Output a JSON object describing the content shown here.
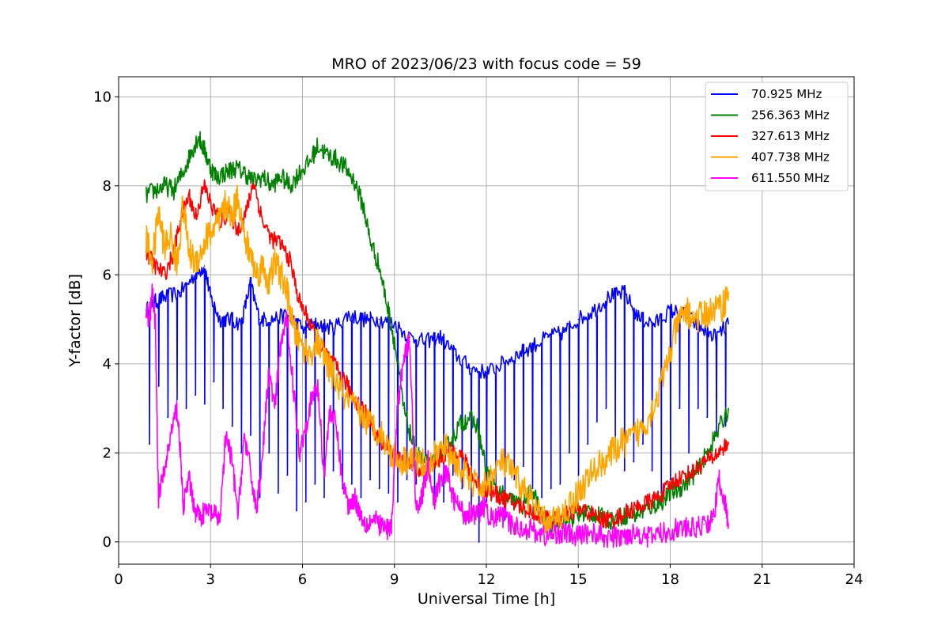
{
  "chart_data": {
    "type": "line",
    "title": "MRO of 2023/06/23 with focus code = 59",
    "xlabel": "Universal Time [h]",
    "ylabel": "Y-factor [dB]",
    "xlim": [
      0,
      24
    ],
    "ylim": [
      -0.5,
      10.45
    ],
    "xticks": [
      0,
      3,
      6,
      9,
      12,
      15,
      18,
      21,
      24
    ],
    "yticks": [
      0,
      2,
      4,
      6,
      8,
      10
    ],
    "grid": true,
    "legend_position": "top-right",
    "series": [
      {
        "name": " 70.925 MHz",
        "color": "#0000ff",
        "x": [
          0.9,
          1.2,
          1.5,
          2.0,
          2.5,
          2.8,
          3.0,
          3.3,
          3.6,
          4.0,
          4.3,
          4.6,
          5.0,
          5.5,
          6.0,
          6.5,
          7.0,
          7.5,
          8.0,
          8.5,
          9.0,
          9.5,
          10.0,
          10.5,
          11.0,
          11.5,
          12.0,
          12.5,
          13.0,
          13.5,
          14.0,
          14.5,
          15.0,
          15.5,
          16.0,
          16.5,
          17.0,
          17.5,
          18.0,
          18.5,
          19.0,
          19.5,
          19.9
        ],
        "y": [
          5.2,
          5.4,
          5.5,
          5.6,
          6.0,
          6.2,
          5.5,
          5.0,
          5.0,
          4.9,
          5.8,
          5.0,
          5.0,
          5.1,
          4.8,
          4.9,
          4.8,
          5.1,
          5.0,
          5.0,
          4.9,
          4.6,
          4.5,
          4.6,
          4.2,
          3.9,
          3.8,
          4.0,
          4.2,
          4.4,
          4.6,
          4.7,
          5.0,
          5.2,
          5.5,
          5.6,
          5.0,
          4.9,
          5.2,
          5.1,
          4.8,
          4.6,
          4.9
        ],
        "dips": [
          {
            "x": 1.0,
            "y": 2.2
          },
          {
            "x": 1.3,
            "y": 3.5
          },
          {
            "x": 1.6,
            "y": 2.8
          },
          {
            "x": 1.9,
            "y": 3.2
          },
          {
            "x": 2.2,
            "y": 3.0
          },
          {
            "x": 2.5,
            "y": 3.3
          },
          {
            "x": 2.8,
            "y": 3.1
          },
          {
            "x": 3.1,
            "y": 3.6
          },
          {
            "x": 3.4,
            "y": 3.0
          },
          {
            "x": 3.7,
            "y": 2.6
          },
          {
            "x": 4.0,
            "y": 2.0
          },
          {
            "x": 4.3,
            "y": 2.4
          },
          {
            "x": 4.6,
            "y": 1.0
          },
          {
            "x": 4.9,
            "y": 2.0
          },
          {
            "x": 5.2,
            "y": 1.1
          },
          {
            "x": 5.5,
            "y": 1.5
          },
          {
            "x": 5.8,
            "y": 0.7
          },
          {
            "x": 6.1,
            "y": 0.9
          },
          {
            "x": 6.4,
            "y": 1.3
          },
          {
            "x": 6.7,
            "y": 1.0
          },
          {
            "x": 7.0,
            "y": 1.6
          },
          {
            "x": 7.3,
            "y": 1.2
          },
          {
            "x": 7.6,
            "y": 1.3
          },
          {
            "x": 7.9,
            "y": 1.0
          },
          {
            "x": 8.2,
            "y": 1.4
          },
          {
            "x": 8.5,
            "y": 1.2
          },
          {
            "x": 8.8,
            "y": 1.1
          },
          {
            "x": 9.1,
            "y": 0.9
          },
          {
            "x": 9.4,
            "y": 1.4
          },
          {
            "x": 9.7,
            "y": 1.3
          },
          {
            "x": 10.0,
            "y": 1.8
          },
          {
            "x": 10.3,
            "y": 1.0
          },
          {
            "x": 10.6,
            "y": 0.9
          },
          {
            "x": 10.9,
            "y": 1.5
          },
          {
            "x": 11.2,
            "y": 1.2
          },
          {
            "x": 11.5,
            "y": 0.7
          },
          {
            "x": 11.75,
            "y": 0.0
          },
          {
            "x": 12.0,
            "y": 0.9
          },
          {
            "x": 12.3,
            "y": 1.2
          },
          {
            "x": 12.6,
            "y": 0.5
          },
          {
            "x": 12.9,
            "y": 1.4
          },
          {
            "x": 13.2,
            "y": 1.7
          },
          {
            "x": 13.5,
            "y": 1.2
          },
          {
            "x": 13.8,
            "y": 1.0
          },
          {
            "x": 14.1,
            "y": 1.2
          },
          {
            "x": 14.4,
            "y": 1.3
          },
          {
            "x": 14.7,
            "y": 2.0
          },
          {
            "x": 15.0,
            "y": 1.5
          },
          {
            "x": 15.3,
            "y": 2.2
          },
          {
            "x": 15.6,
            "y": 2.7
          },
          {
            "x": 15.9,
            "y": 3.0
          },
          {
            "x": 16.2,
            "y": 2.1
          },
          {
            "x": 16.5,
            "y": 1.6
          },
          {
            "x": 16.8,
            "y": 1.8
          },
          {
            "x": 17.1,
            "y": 2.2
          },
          {
            "x": 17.4,
            "y": 1.6
          },
          {
            "x": 17.7,
            "y": 1.1
          },
          {
            "x": 18.0,
            "y": 1.4
          },
          {
            "x": 18.3,
            "y": 3.0
          },
          {
            "x": 18.6,
            "y": 2.0
          },
          {
            "x": 18.9,
            "y": 3.0
          },
          {
            "x": 19.2,
            "y": 2.8
          },
          {
            "x": 19.5,
            "y": 2.4
          },
          {
            "x": 19.8,
            "y": 2.6
          }
        ]
      },
      {
        "name": "256.363 MHz",
        "color": "#008000",
        "x": [
          0.9,
          1.2,
          1.5,
          1.8,
          2.1,
          2.4,
          2.6,
          2.8,
          3.0,
          3.2,
          3.5,
          3.8,
          4.1,
          4.4,
          4.7,
          5.0,
          5.3,
          5.6,
          5.9,
          6.2,
          6.5,
          6.8,
          7.1,
          7.4,
          7.7,
          8.0,
          8.2,
          8.5,
          8.8,
          9.0,
          9.3,
          9.6,
          9.9,
          10.2,
          10.5,
          10.8,
          11.1,
          11.4,
          11.7,
          12.0,
          12.3,
          12.6,
          12.9,
          13.2,
          13.5,
          13.8,
          14.1,
          14.4,
          14.7,
          15.0,
          15.3,
          15.6,
          15.9,
          16.2,
          16.5,
          16.8,
          17.1,
          17.4,
          17.7,
          18.0,
          18.3,
          18.6,
          18.9,
          19.2,
          19.5,
          19.9
        ],
        "y": [
          7.8,
          7.9,
          8.0,
          7.9,
          8.3,
          8.8,
          9.1,
          8.8,
          8.4,
          8.2,
          8.3,
          8.4,
          8.3,
          8.1,
          8.2,
          8.0,
          8.2,
          8.0,
          8.3,
          8.5,
          8.9,
          8.7,
          8.6,
          8.4,
          8.1,
          7.5,
          6.8,
          6.2,
          5.2,
          4.5,
          3.0,
          2.2,
          1.8,
          1.7,
          2.0,
          2.2,
          2.6,
          2.8,
          2.6,
          1.6,
          1.2,
          1.0,
          0.9,
          0.8,
          1.2,
          0.6,
          0.4,
          0.5,
          0.5,
          0.6,
          0.7,
          0.6,
          0.5,
          0.5,
          0.6,
          0.6,
          0.7,
          0.8,
          0.9,
          1.1,
          1.2,
          1.4,
          1.6,
          2.0,
          2.4,
          3.0
        ]
      },
      {
        "name": "327.613 MHz",
        "color": "#ff0000",
        "x": [
          0.9,
          1.2,
          1.5,
          1.8,
          2.0,
          2.3,
          2.5,
          2.8,
          3.0,
          3.3,
          3.6,
          3.9,
          4.2,
          4.4,
          4.7,
          5.0,
          5.3,
          5.6,
          5.9,
          6.2,
          6.5,
          6.8,
          7.1,
          7.4,
          7.7,
          8.0,
          8.3,
          8.6,
          8.9,
          9.2,
          9.5,
          9.8,
          10.1,
          10.4,
          10.7,
          11.0,
          11.3,
          11.6,
          11.9,
          12.2,
          12.5,
          12.8,
          13.1,
          13.4,
          13.7,
          14.0,
          14.3,
          14.6,
          14.9,
          15.2,
          15.5,
          15.8,
          16.1,
          16.4,
          16.7,
          17.0,
          17.3,
          17.6,
          17.9,
          18.2,
          18.5,
          18.8,
          19.1,
          19.4,
          19.7,
          19.9
        ],
        "y": [
          6.5,
          6.2,
          6.0,
          6.5,
          7.2,
          7.8,
          7.3,
          8.0,
          7.6,
          7.2,
          7.4,
          7.0,
          7.5,
          8.1,
          7.2,
          6.8,
          6.7,
          6.3,
          5.4,
          5.0,
          4.5,
          4.2,
          3.9,
          3.6,
          3.2,
          3.0,
          2.6,
          2.2,
          2.0,
          1.8,
          1.7,
          1.6,
          1.7,
          1.8,
          2.0,
          2.1,
          1.8,
          1.4,
          1.2,
          1.1,
          1.0,
          0.9,
          0.8,
          0.7,
          0.6,
          0.5,
          0.5,
          0.6,
          0.7,
          0.7,
          0.6,
          0.5,
          0.5,
          0.6,
          0.7,
          0.8,
          0.9,
          1.0,
          1.2,
          1.4,
          1.5,
          1.6,
          1.8,
          1.9,
          2.1,
          2.2
        ]
      },
      {
        "name": "407.738 MHz",
        "color": "#ffa500",
        "x": [
          0.9,
          1.1,
          1.3,
          1.5,
          1.7,
          1.9,
          2.1,
          2.3,
          2.5,
          2.7,
          2.9,
          3.1,
          3.3,
          3.5,
          3.7,
          3.9,
          4.1,
          4.3,
          4.5,
          4.7,
          4.9,
          5.1,
          5.3,
          5.5,
          5.7,
          5.9,
          6.2,
          6.5,
          6.8,
          7.1,
          7.4,
          7.7,
          8.0,
          8.3,
          8.6,
          8.9,
          9.2,
          9.5,
          9.8,
          10.1,
          10.4,
          10.7,
          11.0,
          11.3,
          11.6,
          11.9,
          12.2,
          12.5,
          12.8,
          13.1,
          13.4,
          13.7,
          14.0,
          14.3,
          14.6,
          14.9,
          15.2,
          15.5,
          15.8,
          16.1,
          16.4,
          16.7,
          17.0,
          17.3,
          17.6,
          17.9,
          18.2,
          18.5,
          18.8,
          19.1,
          19.4,
          19.7,
          19.9
        ],
        "y": [
          6.8,
          6.3,
          7.4,
          6.6,
          6.9,
          6.2,
          7.6,
          6.5,
          6.3,
          6.5,
          6.9,
          7.0,
          7.2,
          7.6,
          7.3,
          7.8,
          6.8,
          6.5,
          6.0,
          6.2,
          5.8,
          6.3,
          6.0,
          5.6,
          4.8,
          4.5,
          4.2,
          4.5,
          4.0,
          3.6,
          3.2,
          3.0,
          2.8,
          2.6,
          2.4,
          2.0,
          1.8,
          1.9,
          1.8,
          1.7,
          2.0,
          2.1,
          1.8,
          1.5,
          1.3,
          1.2,
          1.5,
          1.8,
          1.6,
          1.3,
          1.0,
          0.6,
          0.4,
          0.5,
          0.7,
          1.0,
          1.3,
          1.6,
          1.8,
          2.0,
          2.2,
          2.3,
          2.5,
          2.8,
          3.3,
          4.0,
          4.8,
          5.2,
          5.0,
          5.1,
          5.2,
          5.3,
          5.6
        ]
      },
      {
        "name": "611.550 MHz",
        "color": "#ff00ff",
        "x": [
          0.9,
          1.0,
          1.1,
          1.2,
          1.3,
          1.5,
          1.7,
          1.9,
          2.0,
          2.1,
          2.3,
          2.5,
          2.7,
          2.9,
          3.1,
          3.3,
          3.5,
          3.7,
          3.9,
          4.1,
          4.3,
          4.5,
          4.7,
          4.9,
          5.1,
          5.3,
          5.5,
          5.7,
          5.9,
          6.1,
          6.3,
          6.5,
          6.7,
          6.9,
          7.1,
          7.3,
          7.5,
          7.7,
          7.9,
          8.1,
          8.3,
          8.5,
          8.7,
          8.9,
          9.1,
          9.3,
          9.5,
          9.7,
          9.9,
          10.1,
          10.3,
          10.5,
          10.7,
          10.9,
          11.1,
          11.3,
          11.5,
          11.7,
          11.9,
          12.2,
          12.5,
          12.8,
          13.1,
          13.4,
          13.7,
          14.0,
          14.3,
          14.6,
          14.9,
          15.2,
          15.5,
          15.8,
          16.1,
          16.4,
          16.7,
          17.0,
          17.3,
          17.6,
          17.9,
          18.2,
          18.5,
          18.8,
          19.1,
          19.4,
          19.6,
          19.8,
          19.9
        ],
        "y": [
          5.2,
          5.0,
          5.6,
          4.9,
          1.0,
          1.6,
          2.4,
          3.0,
          2.2,
          0.8,
          1.4,
          0.7,
          0.6,
          0.7,
          0.6,
          0.5,
          2.4,
          1.8,
          0.6,
          2.4,
          1.6,
          0.7,
          2.0,
          3.8,
          3.0,
          4.5,
          5.0,
          3.5,
          2.0,
          2.6,
          3.2,
          3.5,
          1.5,
          3.0,
          2.6,
          1.4,
          0.8,
          1.0,
          0.6,
          0.4,
          0.5,
          0.4,
          0.3,
          0.3,
          3.0,
          4.2,
          4.5,
          0.8,
          1.0,
          1.8,
          0.9,
          1.4,
          1.6,
          1.0,
          0.8,
          0.6,
          0.7,
          0.6,
          0.8,
          0.5,
          0.6,
          0.4,
          0.3,
          0.3,
          0.2,
          0.1,
          0.2,
          0.2,
          0.1,
          0.2,
          0.2,
          0.1,
          0.1,
          0.1,
          0.2,
          0.2,
          0.1,
          0.2,
          0.2,
          0.3,
          0.3,
          0.3,
          0.4,
          0.5,
          1.4,
          0.8,
          0.4
        ]
      }
    ]
  }
}
